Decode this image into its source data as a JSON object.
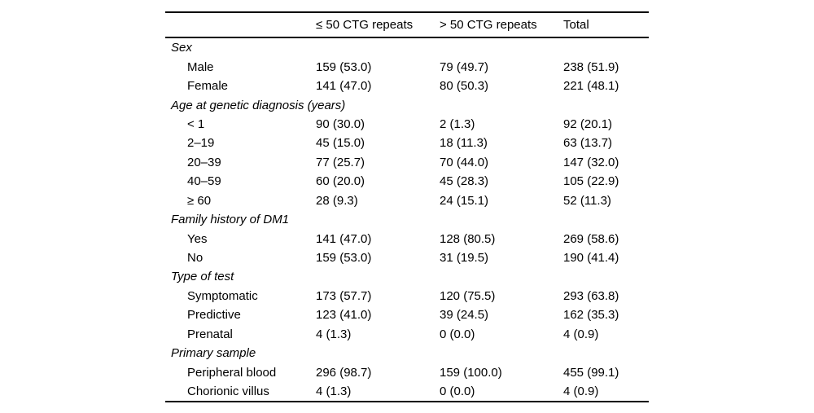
{
  "colors": {
    "text": "#000000",
    "background": "#ffffff",
    "rule": "#000000"
  },
  "table": {
    "columns": [
      "",
      "≤ 50 CTG repeats",
      "> 50 CTG repeats",
      "Total"
    ],
    "sections": [
      {
        "label": "Sex",
        "rows": [
          {
            "label": "Male",
            "values": [
              "159 (53.0)",
              "79 (49.7)",
              "238 (51.9)"
            ]
          },
          {
            "label": "Female",
            "values": [
              "141 (47.0)",
              "80 (50.3)",
              "221 (48.1)"
            ]
          }
        ]
      },
      {
        "label": "Age at genetic diagnosis (years)",
        "rows": [
          {
            "label": "< 1",
            "values": [
              "90 (30.0)",
              "2 (1.3)",
              "92 (20.1)"
            ]
          },
          {
            "label": "2–19",
            "values": [
              "45 (15.0)",
              "18 (11.3)",
              "63 (13.7)"
            ]
          },
          {
            "label": "20–39",
            "values": [
              "77 (25.7)",
              "70 (44.0)",
              "147 (32.0)"
            ]
          },
          {
            "label": "40–59",
            "values": [
              "60 (20.0)",
              "45 (28.3)",
              "105 (22.9)"
            ]
          },
          {
            "label": "≥ 60",
            "values": [
              "28 (9.3)",
              "24 (15.1)",
              "52 (11.3)"
            ]
          }
        ]
      },
      {
        "label": "Family history of DM1",
        "rows": [
          {
            "label": "Yes",
            "values": [
              "141 (47.0)",
              "128 (80.5)",
              "269 (58.6)"
            ]
          },
          {
            "label": "No",
            "values": [
              "159 (53.0)",
              "31 (19.5)",
              "190 (41.4)"
            ]
          }
        ]
      },
      {
        "label": "Type of test",
        "rows": [
          {
            "label": "Symptomatic",
            "values": [
              "173 (57.7)",
              "120 (75.5)",
              "293 (63.8)"
            ]
          },
          {
            "label": "Predictive",
            "values": [
              "123 (41.0)",
              "39 (24.5)",
              "162 (35.3)"
            ]
          },
          {
            "label": "Prenatal",
            "values": [
              "4 (1.3)",
              "0 (0.0)",
              "4 (0.9)"
            ]
          }
        ]
      },
      {
        "label": "Primary sample",
        "rows": [
          {
            "label": "Peripheral blood",
            "values": [
              "296 (98.7)",
              "159 (100.0)",
              "455 (99.1)"
            ]
          },
          {
            "label": "Chorionic villus",
            "values": [
              "4 (1.3)",
              "0 (0.0)",
              "4 (0.9)"
            ]
          }
        ]
      }
    ]
  }
}
